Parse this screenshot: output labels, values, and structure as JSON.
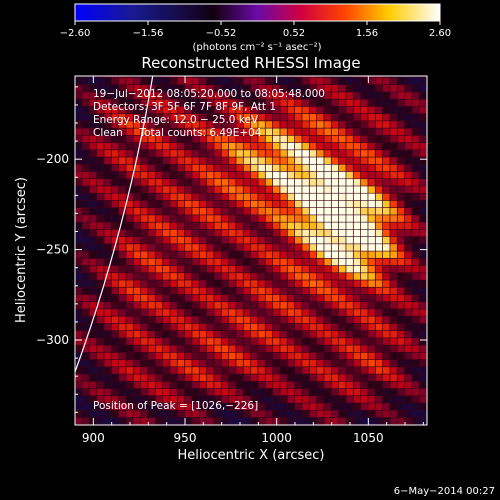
{
  "chart_data": {
    "type": "heatmap",
    "title": "Reconstructed RHESSI Image",
    "xlabel": "Heliocentric X (arcsec)",
    "ylabel": "Heliocentric Y (arcsec)",
    "xlim": [
      890,
      1082
    ],
    "ylim": [
      -347,
      -154
    ],
    "x_ticks": [
      900,
      950,
      1000,
      1050
    ],
    "y_ticks": [
      -200,
      -250,
      -300
    ],
    "colorbar": {
      "unit": "(photons cm⁻² s⁻¹ asec⁻²)",
      "range": [
        -2.6,
        2.6
      ],
      "tick_labels": [
        "−2.60",
        "−1.56",
        "−0.52",
        "0.52",
        "1.56",
        "2.60"
      ],
      "colormap": [
        "#0000ff",
        "#000000",
        "#7a00ff",
        "#ff0000",
        "#ffff00",
        "#ffffff"
      ]
    },
    "annotations": {
      "time_range": "19−Jul−2012 08:05:20.000 to 08:05:48.000",
      "detectors": "Detectors: 3F 5F 6F 7F 8F 9F, Att 1",
      "energy_range": "Energy Range: 12.0 − 25.0 keV",
      "method_counts": "Clean     Total counts: 6.49E+04",
      "peak_position": "Position of Peak = [1026,−226]"
    },
    "peak": {
      "x": 1026,
      "y": -226
    },
    "sources": [
      {
        "x": 1026,
        "y": -226,
        "value": 2.6
      },
      {
        "x": 1045,
        "y": -248,
        "value": 2.4
      },
      {
        "x": 1010,
        "y": -208,
        "value": 1.6
      },
      {
        "x": 985,
        "y": -195,
        "value": 1.1
      }
    ],
    "solar_limb_color": "#ffffff"
  },
  "footer": {
    "date": "6−May−2014 00:27"
  }
}
